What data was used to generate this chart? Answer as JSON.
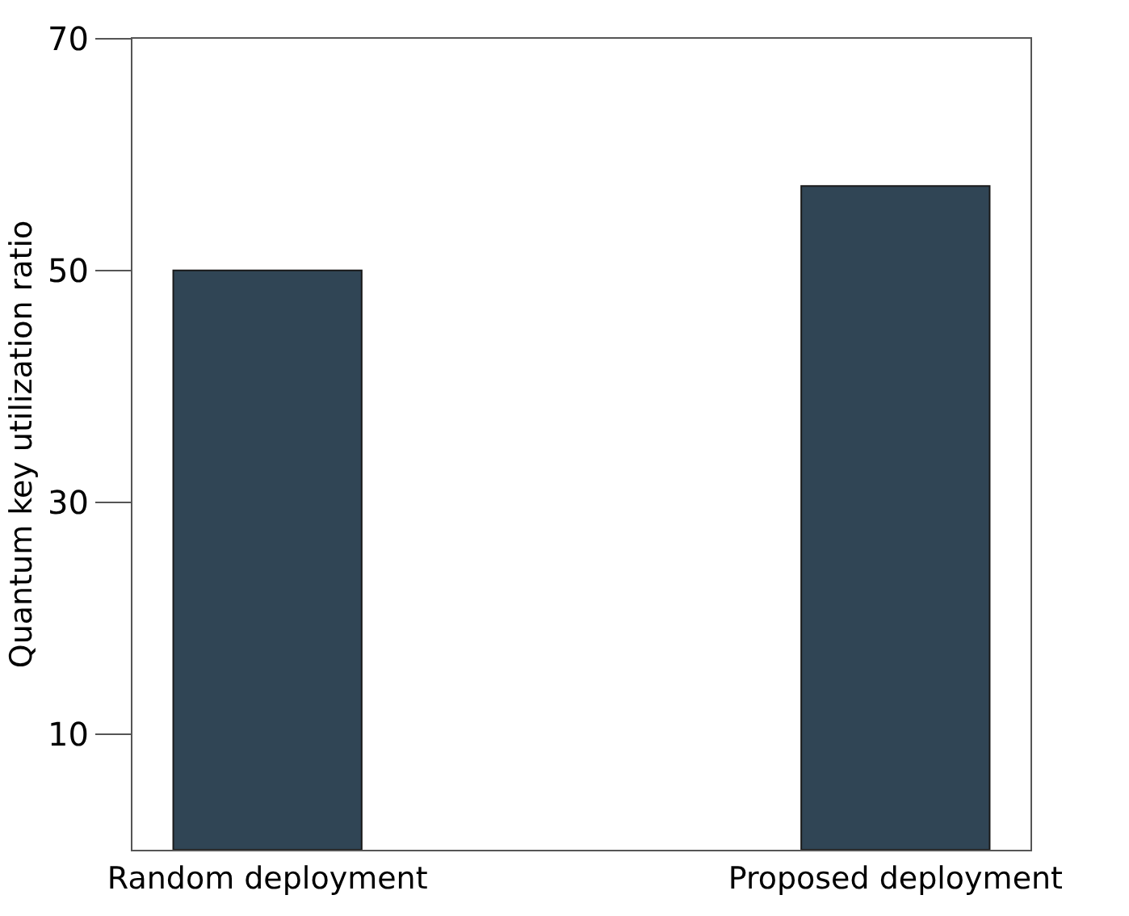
{
  "chart_data": {
    "type": "bar",
    "ylabel": "Quantum key utilization ratio",
    "categories": [
      "Random deployment",
      "Proposed deployment"
    ],
    "values": [
      50,
      57.3
    ],
    "color": "#304555",
    "ylim": [
      0,
      70
    ],
    "yticks": [
      10,
      30,
      50,
      70
    ]
  }
}
